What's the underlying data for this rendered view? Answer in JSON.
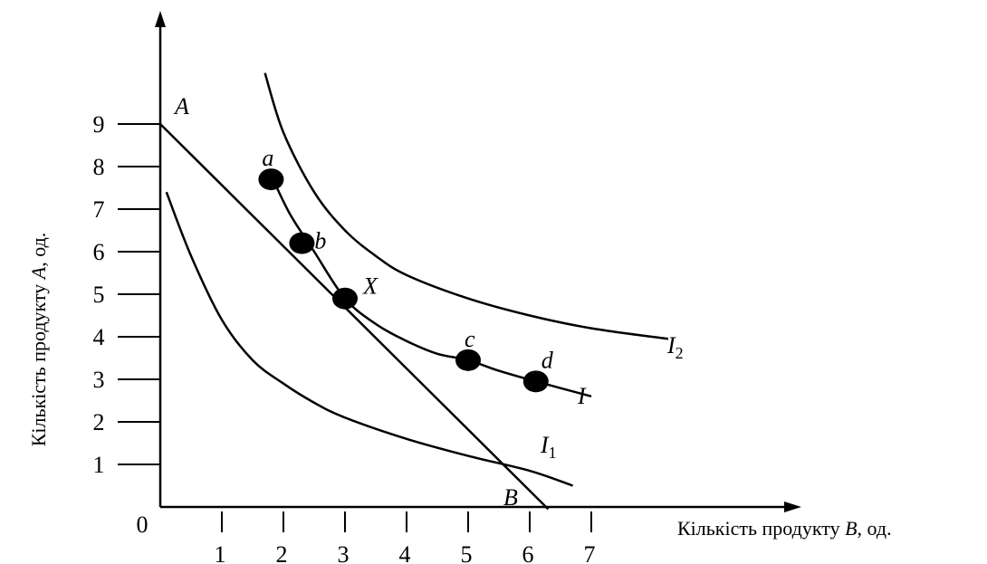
{
  "chart_data": {
    "type": "line",
    "title": "",
    "xlabel": {
      "prefix": "Кількість продукту ",
      "var": "B",
      "suffix": ", од."
    },
    "ylabel": {
      "prefix": "Кількість продукту ",
      "var": "A",
      "suffix": ", од."
    },
    "origin_label": "0",
    "x_ticks": [
      1,
      2,
      3,
      4,
      5,
      6,
      7
    ],
    "y_ticks": [
      1,
      2,
      3,
      4,
      5,
      6,
      7,
      8,
      9
    ],
    "xlim": [
      0,
      10.4
    ],
    "ylim": [
      0,
      11.7
    ],
    "budget_line": {
      "name_start": "A",
      "name_end": "B",
      "points": [
        [
          0,
          9
        ],
        [
          6.3,
          -0.05
        ]
      ]
    },
    "indifference_curves": [
      {
        "label": "I",
        "subscript": "1",
        "points": [
          [
            0.1,
            7.4
          ],
          [
            0.5,
            5.9
          ],
          [
            1.0,
            4.4
          ],
          [
            1.5,
            3.45
          ],
          [
            2.0,
            2.9
          ],
          [
            2.5,
            2.45
          ],
          [
            3.0,
            2.1
          ],
          [
            4.0,
            1.6
          ],
          [
            5.0,
            1.2
          ],
          [
            6.0,
            0.85
          ],
          [
            6.7,
            0.5
          ]
        ]
      },
      {
        "label": "I",
        "subscript": "",
        "points": [
          [
            1.8,
            7.8
          ],
          [
            2.1,
            6.9
          ],
          [
            2.5,
            6.0
          ],
          [
            3.0,
            4.9
          ],
          [
            3.5,
            4.3
          ],
          [
            4.0,
            3.9
          ],
          [
            4.5,
            3.6
          ],
          [
            5.0,
            3.45
          ],
          [
            5.5,
            3.2
          ],
          [
            6.1,
            2.95
          ],
          [
            7.0,
            2.6
          ]
        ]
      },
      {
        "label": "I",
        "subscript": "2",
        "points": [
          [
            1.7,
            10.2
          ],
          [
            2.0,
            8.8
          ],
          [
            2.5,
            7.4
          ],
          [
            3.0,
            6.5
          ],
          [
            3.5,
            5.9
          ],
          [
            4.0,
            5.45
          ],
          [
            5.0,
            4.9
          ],
          [
            6.0,
            4.5
          ],
          [
            7.0,
            4.2
          ],
          [
            8.25,
            3.95
          ]
        ]
      }
    ],
    "points": [
      {
        "label": "a",
        "x": 1.8,
        "y": 7.7
      },
      {
        "label": "b",
        "x": 2.3,
        "y": 6.2
      },
      {
        "label": "X",
        "x": 3.0,
        "y": 4.9
      },
      {
        "label": "c",
        "x": 5.0,
        "y": 3.45
      },
      {
        "label": "d",
        "x": 6.1,
        "y": 2.95
      }
    ],
    "grid": false,
    "legend": "none"
  }
}
